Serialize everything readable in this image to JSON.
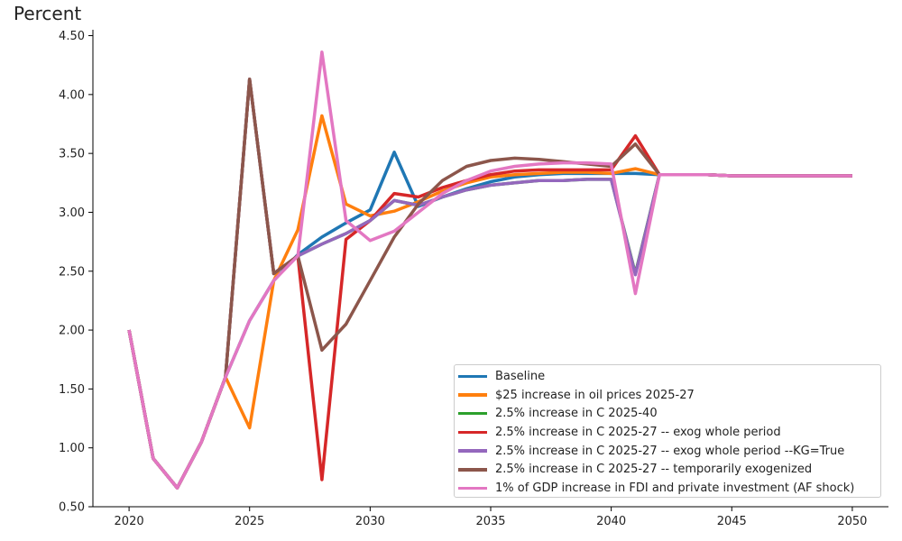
{
  "chart_data": {
    "type": "line",
    "ylabel": "Percent",
    "xlabel": "",
    "xlim": [
      2018.5,
      2051.5
    ],
    "ylim": [
      0.5,
      4.55
    ],
    "x_ticks": [
      "2020",
      "2025",
      "2030",
      "2035",
      "2040",
      "2045",
      "2050"
    ],
    "y_ticks": [
      "0.50",
      "1.00",
      "1.50",
      "2.00",
      "2.50",
      "3.00",
      "3.50",
      "4.00",
      "4.50"
    ],
    "legend_position": "lower-right",
    "x": [
      2020,
      2021,
      2022,
      2023,
      2024,
      2025,
      2026,
      2027,
      2028,
      2029,
      2030,
      2031,
      2032,
      2033,
      2034,
      2035,
      2036,
      2037,
      2038,
      2039,
      2040,
      2041,
      2042,
      2043,
      2044,
      2045,
      2046,
      2047,
      2048,
      2049,
      2050
    ],
    "series": [
      {
        "name": "Baseline",
        "color": "#1f77b4",
        "values": [
          2.0,
          0.91,
          0.66,
          1.05,
          1.6,
          2.08,
          2.42,
          2.64,
          2.79,
          2.91,
          3.02,
          3.51,
          3.05,
          3.13,
          3.2,
          3.26,
          3.3,
          3.32,
          3.33,
          3.33,
          3.33,
          3.33,
          3.32,
          3.32,
          3.32,
          3.31,
          3.31,
          3.31,
          3.31,
          3.31,
          3.31
        ]
      },
      {
        "name": "$25 increase in oil prices 2025-27",
        "color": "#ff7f0e",
        "values": [
          2.0,
          0.91,
          0.66,
          1.05,
          1.6,
          1.17,
          2.42,
          2.85,
          3.82,
          3.07,
          2.97,
          3.01,
          3.09,
          3.18,
          3.25,
          3.3,
          3.32,
          3.33,
          3.34,
          3.34,
          3.33,
          3.37,
          3.32,
          3.32,
          3.32,
          3.31,
          3.31,
          3.31,
          3.31,
          3.31,
          3.31
        ]
      },
      {
        "name": "2.5% increase in C 2025-40",
        "color": "#2ca02c",
        "values": [
          2.0,
          0.91,
          0.66,
          1.05,
          1.6,
          4.13,
          2.48,
          2.63,
          2.73,
          2.82,
          2.93,
          3.1,
          3.06,
          3.13,
          3.19,
          3.23,
          3.25,
          3.27,
          3.27,
          3.28,
          3.28,
          2.48,
          3.32,
          3.32,
          3.32,
          3.31,
          3.31,
          3.31,
          3.31,
          3.31,
          3.31
        ]
      },
      {
        "name": "2.5% increase in C 2025-27 -- exog whole period",
        "color": "#d62728",
        "values": [
          2.0,
          0.91,
          0.66,
          1.05,
          1.6,
          4.13,
          2.48,
          2.63,
          0.73,
          2.77,
          2.93,
          3.16,
          3.13,
          3.21,
          3.27,
          3.32,
          3.35,
          3.36,
          3.36,
          3.36,
          3.36,
          3.65,
          3.32,
          3.32,
          3.32,
          3.31,
          3.31,
          3.31,
          3.31,
          3.31,
          3.31
        ]
      },
      {
        "name": "2.5% increase in C 2025-27 -- exog whole period --KG=True",
        "color": "#9467bd",
        "values": [
          2.0,
          0.91,
          0.66,
          1.05,
          1.6,
          4.13,
          2.48,
          2.63,
          2.73,
          2.82,
          2.93,
          3.1,
          3.06,
          3.13,
          3.19,
          3.23,
          3.25,
          3.27,
          3.27,
          3.28,
          3.28,
          2.47,
          3.32,
          3.32,
          3.32,
          3.31,
          3.31,
          3.31,
          3.31,
          3.31,
          3.31
        ]
      },
      {
        "name": "2.5% increase in C 2025-27 -- temporarily exogenized",
        "color": "#8c564b",
        "values": [
          2.0,
          0.91,
          0.66,
          1.05,
          1.6,
          4.13,
          2.48,
          2.63,
          1.83,
          2.05,
          2.42,
          2.79,
          3.07,
          3.27,
          3.39,
          3.44,
          3.46,
          3.45,
          3.43,
          3.41,
          3.39,
          3.58,
          3.32,
          3.32,
          3.32,
          3.31,
          3.31,
          3.31,
          3.31,
          3.31,
          3.31
        ]
      },
      {
        "name": "1% of GDP increase in FDI and private investment (AF shock)",
        "color": "#e377c2",
        "values": [
          2.0,
          0.91,
          0.66,
          1.05,
          1.6,
          2.08,
          2.42,
          2.63,
          4.36,
          2.93,
          2.76,
          2.84,
          3.0,
          3.16,
          3.27,
          3.35,
          3.39,
          3.41,
          3.42,
          3.42,
          3.41,
          2.31,
          3.32,
          3.32,
          3.32,
          3.31,
          3.31,
          3.31,
          3.31,
          3.31,
          3.31
        ]
      }
    ]
  }
}
